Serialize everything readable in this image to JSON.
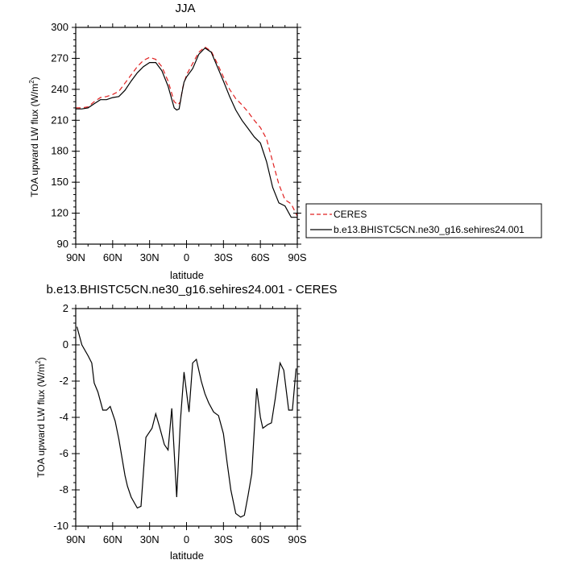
{
  "chart_data": [
    {
      "type": "line",
      "title": "JJA",
      "xlabel": "latitude",
      "ylabel": "TOA upward LW flux (W/m²)",
      "ylabel_main": "TOA upward LW flux (W/m",
      "ylabel_sup": "2",
      "ylabel_close": ")",
      "xlim": [
        90,
        -90
      ],
      "ylim": [
        90,
        300
      ],
      "x_ticks": [
        90,
        60,
        30,
        0,
        -30,
        -60,
        -90
      ],
      "x_tick_labels": [
        "90N",
        "60N",
        "30N",
        "0",
        "30S",
        "60S",
        "90S"
      ],
      "y_ticks": [
        90,
        120,
        150,
        180,
        210,
        240,
        270,
        300
      ],
      "y_tick_labels": [
        "90",
        "120",
        "150",
        "180",
        "210",
        "240",
        "270",
        "300"
      ],
      "legend": {
        "placement": "right-outside",
        "entries": [
          "CERES",
          "b.e13.BHISTC5CN.ne30_g16.sehires24.001"
        ]
      },
      "series": [
        {
          "name": "CERES",
          "color": "#e02020",
          "dash": "dashed",
          "x": [
            90,
            85,
            80,
            75,
            70,
            65,
            60,
            55,
            50,
            45,
            40,
            35,
            30,
            25,
            20,
            15,
            10,
            7,
            5,
            3,
            0,
            -5,
            -10,
            -15,
            -20,
            -25,
            -30,
            -35,
            -40,
            -45,
            -50,
            -55,
            -60,
            -65,
            -70,
            -75,
            -80,
            -85,
            -90
          ],
          "y": [
            222,
            222,
            223,
            228,
            232,
            233,
            235,
            238,
            246,
            254,
            262,
            268,
            271,
            269,
            262,
            248,
            228,
            225,
            228,
            242,
            254,
            265,
            276,
            281,
            277,
            265,
            252,
            240,
            231,
            225,
            218,
            210,
            203,
            192,
            170,
            148,
            133,
            129,
            117
          ]
        },
        {
          "name": "b.e13.BHISTC5CN.ne30_g16.sehires24.001",
          "color": "#000000",
          "dash": "solid",
          "x": [
            90,
            85,
            80,
            75,
            70,
            65,
            60,
            55,
            50,
            45,
            40,
            35,
            30,
            25,
            20,
            15,
            10,
            8,
            6,
            4,
            2,
            0,
            -5,
            -10,
            -15,
            -20,
            -25,
            -30,
            -35,
            -40,
            -45,
            -50,
            -55,
            -60,
            -65,
            -70,
            -75,
            -80,
            -85,
            -90
          ],
          "y": [
            221,
            221,
            222,
            226,
            230,
            230,
            232,
            233,
            239,
            248,
            256,
            262,
            266,
            266,
            258,
            243,
            222,
            220,
            221,
            235,
            247,
            252,
            260,
            274,
            280,
            276,
            262,
            248,
            233,
            220,
            210,
            202,
            194,
            188,
            170,
            145,
            130,
            127,
            116,
            116
          ]
        }
      ]
    },
    {
      "type": "line",
      "title": "b.e13.BHISTC5CN.ne30_g16.sehires24.001 - CERES",
      "xlabel": "latitude",
      "ylabel": "TOA upward LW flux (W/m²)",
      "ylabel_main": "TOA upward LW flux (W/m",
      "ylabel_sup": "2",
      "ylabel_close": ")",
      "xlim": [
        90,
        -90
      ],
      "ylim": [
        -10,
        2
      ],
      "x_ticks": [
        90,
        60,
        30,
        0,
        -30,
        -60,
        -90
      ],
      "x_tick_labels": [
        "90N",
        "60N",
        "30N",
        "0",
        "30S",
        "60S",
        "90S"
      ],
      "y_ticks": [
        -10,
        -8,
        -6,
        -4,
        -2,
        0,
        2
      ],
      "y_tick_labels": [
        "-10",
        "-8",
        "-6",
        "-4",
        "-2",
        "0",
        "2"
      ],
      "series": [
        {
          "color": "#000000",
          "dash": "solid",
          "x": [
            89,
            85,
            80,
            77,
            75,
            72,
            68,
            65,
            62,
            58,
            55,
            50,
            48,
            45,
            40,
            37,
            33,
            28,
            25,
            22,
            18,
            15,
            12,
            8,
            5,
            2,
            -2,
            -5,
            -8,
            -12,
            -15,
            -18,
            -22,
            -26,
            -30,
            -33,
            -36,
            -40,
            -44,
            -47,
            -50,
            -53,
            -57,
            -60,
            -62,
            -66,
            -69,
            -72,
            -76,
            -79,
            -83,
            -86,
            -89
          ],
          "y": [
            1.0,
            0.0,
            -0.6,
            -1.0,
            -2.1,
            -2.6,
            -3.6,
            -3.6,
            -3.4,
            -4.2,
            -5.2,
            -7.2,
            -7.8,
            -8.4,
            -9.0,
            -8.9,
            -5.1,
            -4.6,
            -3.8,
            -4.5,
            -5.5,
            -5.8,
            -3.5,
            -8.4,
            -4.2,
            -1.5,
            -3.7,
            -1.0,
            -0.8,
            -2.0,
            -2.7,
            -3.2,
            -3.7,
            -3.9,
            -4.9,
            -6.5,
            -8.0,
            -9.3,
            -9.5,
            -9.4,
            -8.3,
            -7.1,
            -2.4,
            -4.0,
            -4.6,
            -4.4,
            -4.3,
            -3.0,
            -1.0,
            -1.4,
            -3.6,
            -3.6,
            -1.3
          ]
        }
      ]
    }
  ]
}
